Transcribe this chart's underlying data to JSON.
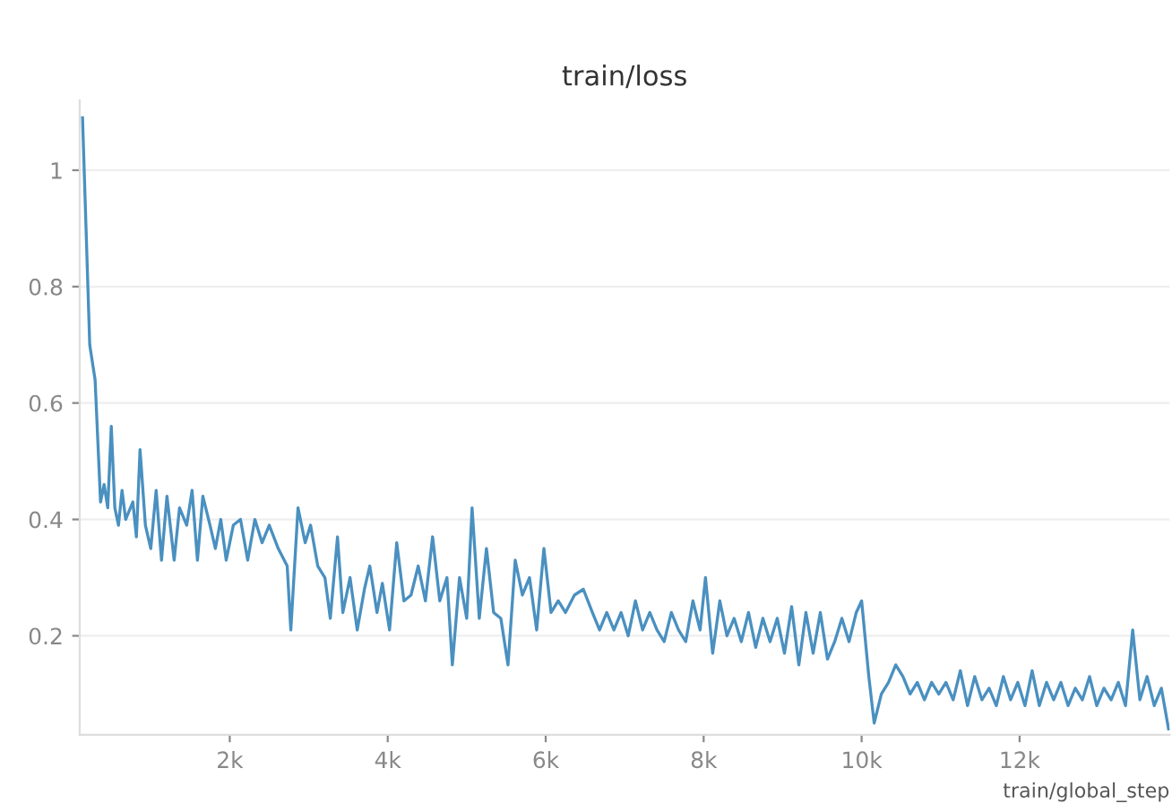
{
  "chart_data": {
    "type": "line",
    "title": "train/loss",
    "xlabel": "train/global_step",
    "xlim": [
      100,
      13900
    ],
    "ylim": [
      0.03,
      1.12
    ],
    "xticks": [
      {
        "value": 2000,
        "label": "2k"
      },
      {
        "value": 4000,
        "label": "4k"
      },
      {
        "value": 6000,
        "label": "6k"
      },
      {
        "value": 8000,
        "label": "8k"
      },
      {
        "value": 10000,
        "label": "10k"
      },
      {
        "value": 12000,
        "label": "12k"
      }
    ],
    "yticks": [
      0.2,
      0.4,
      0.6,
      0.8,
      1
    ],
    "grid": "y",
    "legend": false,
    "marker": "none",
    "line_style": "solid",
    "series": [
      {
        "color": "#4a90c0",
        "x": [
          136,
          227,
          295,
          364,
          409,
          455,
          500,
          545,
          591,
          636,
          682,
          773,
          818,
          864,
          932,
          1000,
          1068,
          1136,
          1205,
          1296,
          1364,
          1455,
          1523,
          1591,
          1659,
          1750,
          1818,
          1886,
          1955,
          2045,
          2136,
          2227,
          2318,
          2409,
          2500,
          2614,
          2727,
          2773,
          2864,
          2955,
          3023,
          3114,
          3205,
          3273,
          3364,
          3432,
          3523,
          3614,
          3705,
          3773,
          3864,
          3932,
          4023,
          4114,
          4205,
          4295,
          4386,
          4477,
          4568,
          4659,
          4750,
          4818,
          4909,
          5000,
          5068,
          5159,
          5250,
          5341,
          5432,
          5523,
          5614,
          5705,
          5795,
          5886,
          5977,
          6068,
          6159,
          6250,
          6364,
          6477,
          6591,
          6682,
          6773,
          6864,
          6955,
          7045,
          7136,
          7227,
          7318,
          7409,
          7500,
          7591,
          7682,
          7773,
          7864,
          7955,
          8023,
          8114,
          8205,
          8295,
          8386,
          8477,
          8568,
          8659,
          8750,
          8841,
          8932,
          9023,
          9114,
          9205,
          9295,
          9386,
          9477,
          9568,
          9659,
          9750,
          9841,
          9932,
          10000,
          10091,
          10159,
          10250,
          10341,
          10432,
          10523,
          10614,
          10705,
          10795,
          10886,
          10977,
          11068,
          11159,
          11250,
          11341,
          11432,
          11523,
          11614,
          11705,
          11795,
          11886,
          11977,
          12068,
          12159,
          12250,
          12341,
          12432,
          12523,
          12614,
          12705,
          12795,
          12886,
          12977,
          13068,
          13159,
          13250,
          13341,
          13432,
          13523,
          13614,
          13705,
          13795,
          13886
        ],
        "values": [
          1.09,
          0.7,
          0.64,
          0.43,
          0.46,
          0.42,
          0.56,
          0.42,
          0.39,
          0.45,
          0.4,
          0.43,
          0.37,
          0.52,
          0.39,
          0.35,
          0.45,
          0.33,
          0.44,
          0.33,
          0.42,
          0.39,
          0.45,
          0.33,
          0.44,
          0.39,
          0.35,
          0.4,
          0.33,
          0.39,
          0.4,
          0.33,
          0.4,
          0.36,
          0.39,
          0.35,
          0.32,
          0.21,
          0.42,
          0.36,
          0.39,
          0.32,
          0.3,
          0.23,
          0.37,
          0.24,
          0.3,
          0.21,
          0.28,
          0.32,
          0.24,
          0.29,
          0.21,
          0.36,
          0.26,
          0.27,
          0.32,
          0.26,
          0.37,
          0.26,
          0.3,
          0.15,
          0.3,
          0.23,
          0.42,
          0.23,
          0.35,
          0.24,
          0.23,
          0.15,
          0.33,
          0.27,
          0.3,
          0.21,
          0.35,
          0.24,
          0.26,
          0.24,
          0.27,
          0.28,
          0.24,
          0.21,
          0.24,
          0.21,
          0.24,
          0.2,
          0.26,
          0.21,
          0.24,
          0.21,
          0.19,
          0.24,
          0.21,
          0.19,
          0.26,
          0.21,
          0.3,
          0.17,
          0.26,
          0.2,
          0.23,
          0.19,
          0.24,
          0.18,
          0.23,
          0.19,
          0.23,
          0.17,
          0.25,
          0.15,
          0.24,
          0.17,
          0.24,
          0.16,
          0.19,
          0.23,
          0.19,
          0.24,
          0.26,
          0.13,
          0.05,
          0.1,
          0.12,
          0.15,
          0.13,
          0.1,
          0.12,
          0.09,
          0.12,
          0.1,
          0.12,
          0.09,
          0.14,
          0.08,
          0.13,
          0.09,
          0.11,
          0.08,
          0.13,
          0.09,
          0.12,
          0.08,
          0.14,
          0.08,
          0.12,
          0.09,
          0.12,
          0.08,
          0.11,
          0.09,
          0.13,
          0.08,
          0.11,
          0.09,
          0.12,
          0.08,
          0.21,
          0.09,
          0.13,
          0.08,
          0.11,
          0.04
        ]
      }
    ]
  }
}
